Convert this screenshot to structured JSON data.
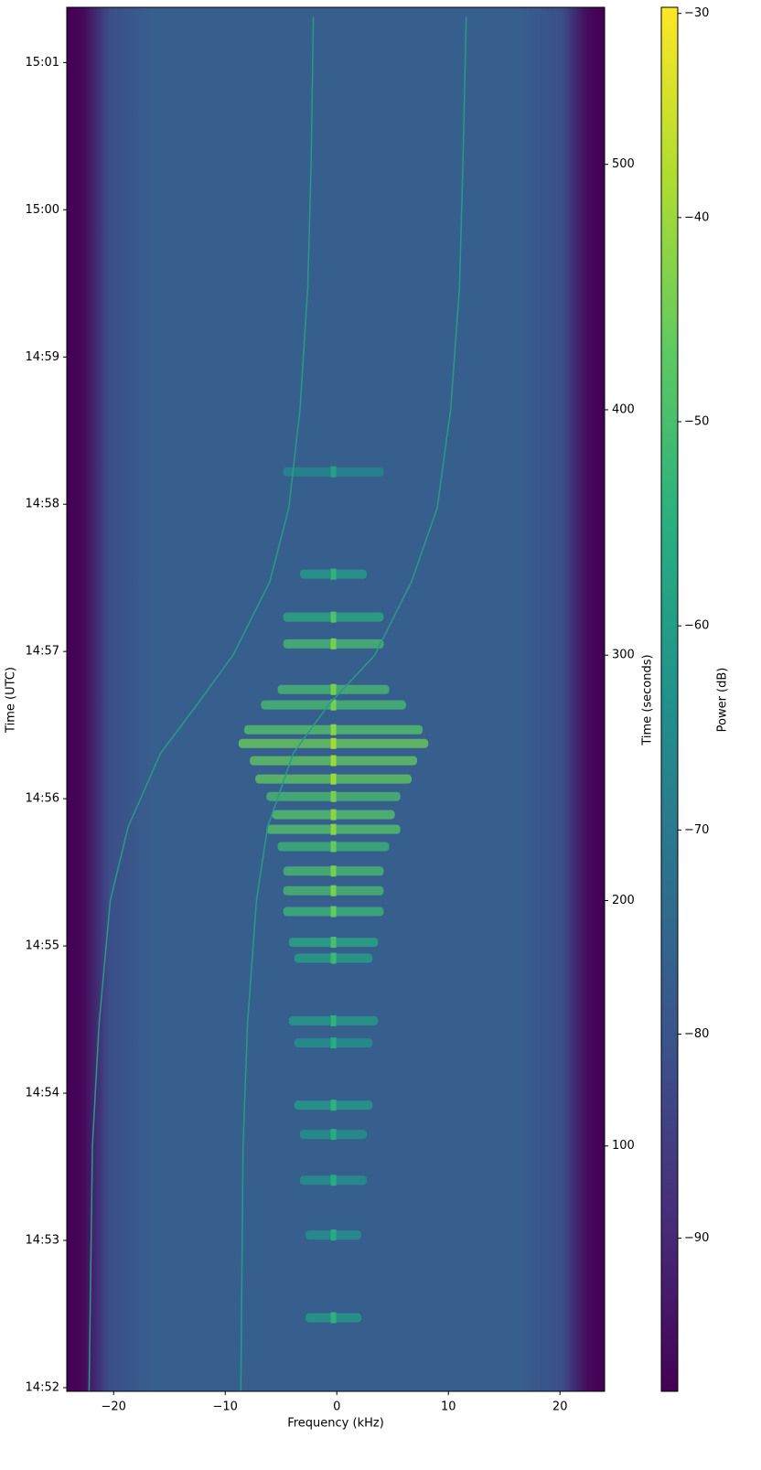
{
  "chart_data": {
    "type": "spectrogram",
    "xlabel": "Frequency (kHz)",
    "ylabel": "Time (UTC)",
    "y2label": "Time (seconds)",
    "colorbar_label": "Power (dB)",
    "colormap": "viridis",
    "xlim": [
      -24.2,
      24.0
    ],
    "xticks": [
      {
        "value": -20,
        "label": "−20"
      },
      {
        "value": -10,
        "label": "−10"
      },
      0,
      10,
      20
    ],
    "ylim": [
      0,
      564
    ],
    "yticks": [
      {
        "value": 1.5,
        "label": "14:52"
      },
      {
        "value": 61.5,
        "label": "14:53"
      },
      {
        "value": 121.5,
        "label": "14:54"
      },
      {
        "value": 181.5,
        "label": "14:55"
      },
      {
        "value": 241.5,
        "label": "14:56"
      },
      {
        "value": 301.5,
        "label": "14:57"
      },
      {
        "value": 361.5,
        "label": "14:58"
      },
      {
        "value": 421.5,
        "label": "14:59"
      },
      {
        "value": 481.5,
        "label": "15:00"
      },
      {
        "value": 541.5,
        "label": "15:01"
      }
    ],
    "y2lim": [
      0,
      564
    ],
    "y2ticks": [
      100,
      200,
      300,
      400,
      500
    ],
    "clim": [
      -97.5,
      -29.7
    ],
    "cticks": [
      {
        "value": -30,
        "label": "−30"
      },
      {
        "value": -40,
        "label": "−40"
      },
      {
        "value": -50,
        "label": "−50"
      },
      {
        "value": -60,
        "label": "−60"
      },
      {
        "value": -70,
        "label": "−70"
      },
      {
        "value": -80,
        "label": "−80"
      },
      {
        "value": -90,
        "label": "−90"
      }
    ],
    "series": [
      {
        "color": "#2a9a86",
        "x": [
          -22.2,
          -21.9,
          -21.3,
          -20.3,
          -18.7,
          -15.8,
          -12.5,
          -9.3,
          -6.0,
          -4.3,
          -3.3,
          -2.6,
          -2.3,
          -2.1
        ],
        "y": [
          0,
          100,
          150,
          200,
          230,
          260,
          280,
          300,
          330,
          360,
          400,
          450,
          500,
          560
        ]
      },
      {
        "color": "#2a9a86",
        "x": [
          -8.6,
          -8.4,
          -8.0,
          -7.2,
          -6.2,
          -3.9,
          -0.7,
          3.4,
          6.7,
          9.0,
          10.2,
          11.0,
          11.3,
          11.6
        ],
        "y": [
          0,
          100,
          150,
          200,
          230,
          260,
          280,
          300,
          330,
          360,
          400,
          450,
          500,
          560
        ]
      }
    ],
    "bursts": {
      "t": [
        30,
        63.7,
        86,
        104.7,
        116.6,
        142,
        151,
        176.5,
        183,
        195.5,
        204,
        212,
        222,
        229,
        235,
        242.4,
        249.5,
        257,
        264,
        269.6,
        279.7,
        286,
        304.6,
        315.5,
        333,
        374.7
      ],
      "halfwidth": [
        2.5,
        2.5,
        3,
        3,
        3.5,
        3.5,
        4,
        3.5,
        4,
        4.5,
        4.5,
        4.5,
        5,
        6,
        5.5,
        6,
        7,
        7.5,
        8.5,
        8,
        6.5,
        5,
        4.5,
        4.5,
        3,
        4.5
      ],
      "power": [
        -60,
        -62,
        -62,
        -62,
        -60,
        -62,
        -60,
        -58,
        -56,
        -52,
        -50,
        -50,
        -52,
        -48,
        -48,
        -50,
        -46,
        -46,
        -45,
        -48,
        -50,
        -50,
        -50,
        -55,
        -60,
        -65
      ]
    }
  }
}
